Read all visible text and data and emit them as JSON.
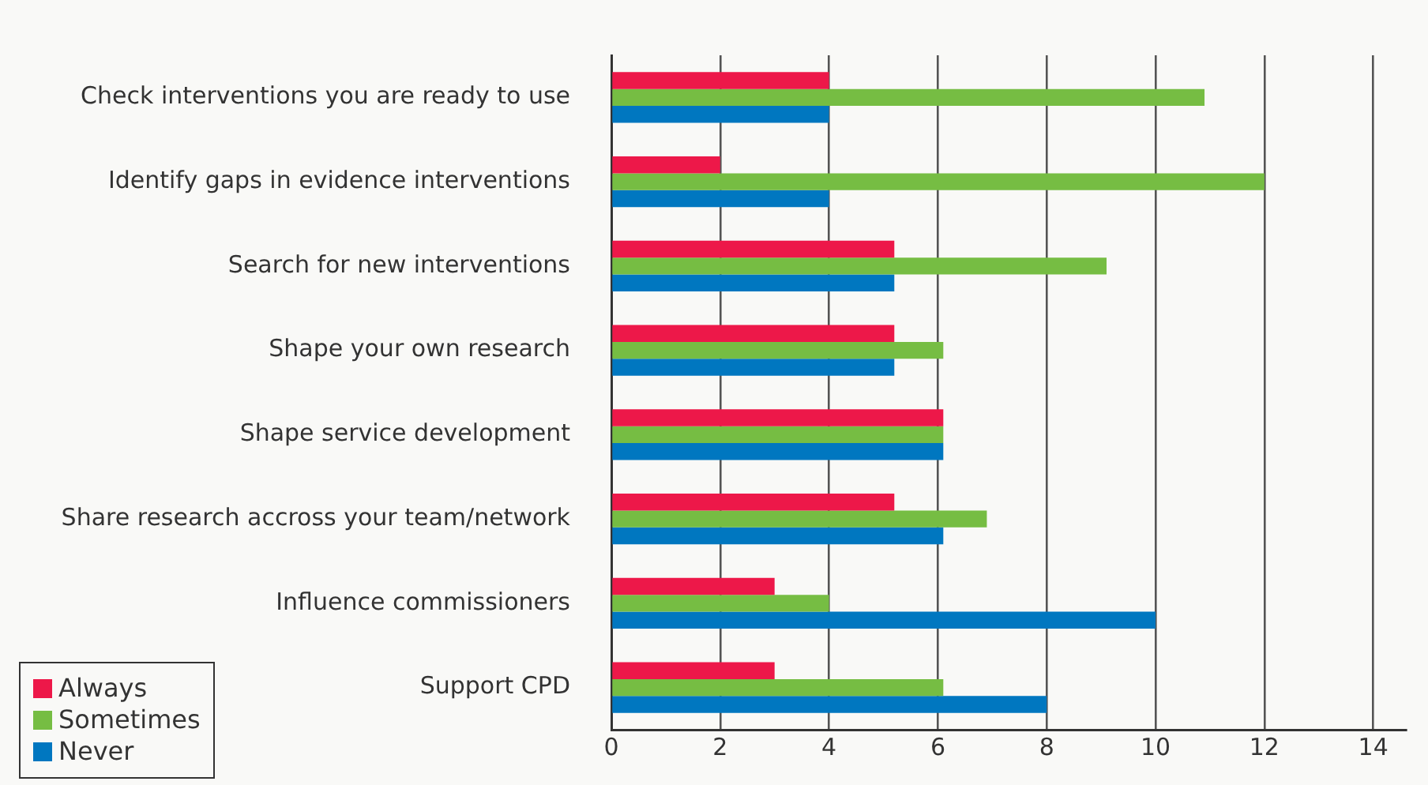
{
  "chart_data": {
    "type": "bar",
    "orientation": "horizontal",
    "categories": [
      "Check interventions you are ready to use",
      "Identify gaps in evidence interventions",
      "Search for new interventions",
      "Shape your own research",
      "Shape service development",
      "Share research accross your team/network",
      "Influence commissioners",
      "Support CPD"
    ],
    "series": [
      {
        "name": "Always",
        "color": "#ed1849",
        "values": [
          4,
          2,
          5.2,
          5.2,
          6.1,
          5.2,
          3,
          3
        ]
      },
      {
        "name": "Sometimes",
        "color": "#76bd43",
        "values": [
          10.9,
          12,
          9.1,
          6.1,
          6.1,
          6.9,
          4,
          6.1
        ]
      },
      {
        "name": "Never",
        "color": "#0077c0",
        "values": [
          4,
          4,
          5.2,
          5.2,
          6.1,
          6.1,
          10,
          8
        ]
      }
    ],
    "xlim": [
      0,
      14.6
    ],
    "xticks": [
      0,
      2,
      4,
      6,
      8,
      10,
      12,
      14
    ],
    "grid": "x",
    "legend": "bottom left"
  }
}
